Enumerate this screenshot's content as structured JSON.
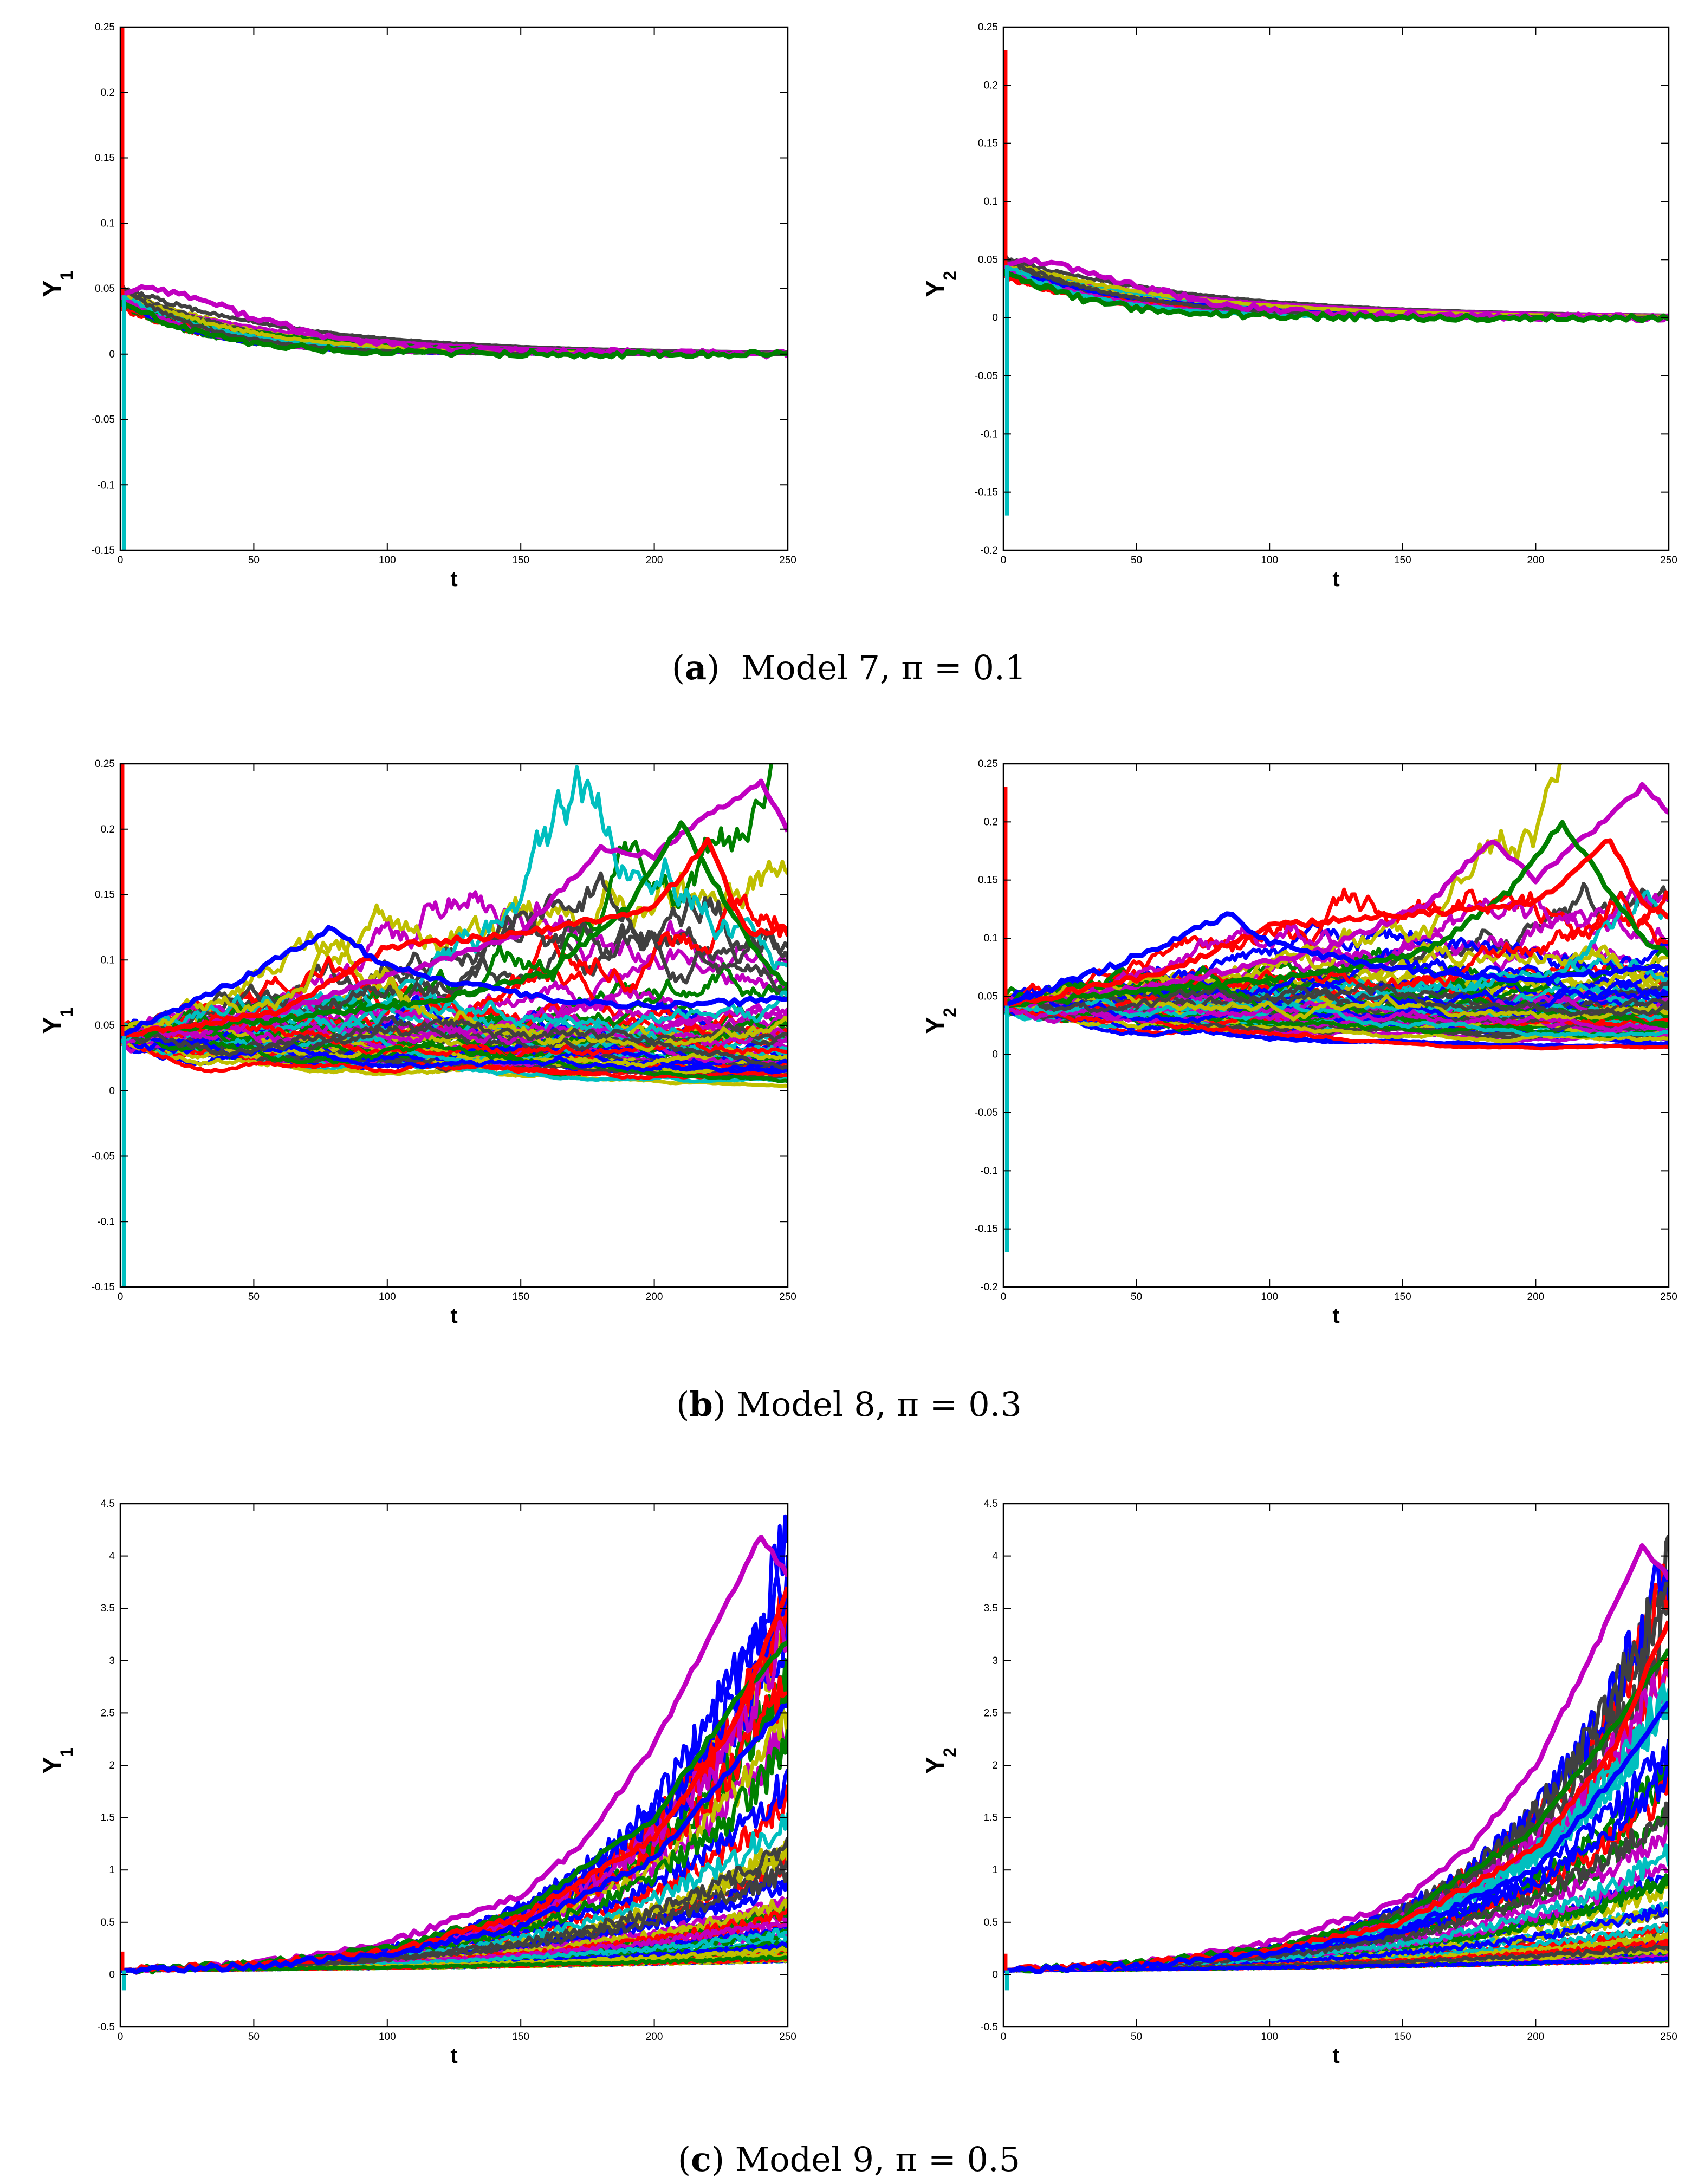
{
  "captions": [
    {
      "tag": "a",
      "text": "Model 7, π = 0.1"
    },
    {
      "tag": "b",
      "text": "Model 8, π = 0.3"
    },
    {
      "tag": "c",
      "text": "Model 9, π = 0.5"
    }
  ],
  "line_colors": [
    "#ff0000",
    "#008000",
    "#0000ff",
    "#c000c0",
    "#00bfbf",
    "#bfbf00",
    "#404040"
  ],
  "chart_data": [
    {
      "id": "a-left",
      "panel": "a",
      "type": "line",
      "title": "",
      "xlabel": "t",
      "ylabel": "Y",
      "ylabel_sub": "1",
      "xlim": [
        0,
        250
      ],
      "ylim": [
        -0.15,
        0.25
      ],
      "xticks": [
        "0",
        "50",
        "100",
        "150",
        "200",
        "250"
      ],
      "yticks": [
        "-0.15",
        "-0.1",
        "-0.05",
        "0",
        "0.05",
        "0.1",
        "0.15",
        "0.2",
        "0.25"
      ],
      "sim": {
        "model": "decay",
        "n_paths": 28,
        "start": 0.045,
        "spread": 0.006,
        "noise": 0.004,
        "rate": 0.045,
        "spike_hi": 0.25,
        "spike_lo": -0.15,
        "seed": 11
      },
      "series": [
        {
          "name": "path-high",
          "x": [
            0,
            10,
            30,
            50,
            80,
            120,
            160,
            200,
            250
          ],
          "y": [
            0.045,
            0.052,
            0.042,
            0.028,
            0.012,
            0.004,
            0.002,
            0.001,
            0.0
          ]
        },
        {
          "name": "path-low",
          "x": [
            0,
            10,
            30,
            50,
            80,
            120,
            160,
            200,
            250
          ],
          "y": [
            0.04,
            0.03,
            0.016,
            0.008,
            0.003,
            0.001,
            0.0,
            0.0,
            0.0
          ]
        }
      ]
    },
    {
      "id": "a-right",
      "panel": "a",
      "type": "line",
      "title": "",
      "xlabel": "t",
      "ylabel": "Y",
      "ylabel_sub": "2",
      "xlim": [
        0,
        250
      ],
      "ylim": [
        -0.2,
        0.25
      ],
      "xticks": [
        "0",
        "50",
        "100",
        "150",
        "200",
        "250"
      ],
      "yticks": [
        "-0.2",
        "-0.15",
        "-0.1",
        "-0.05",
        "0",
        "0.05",
        "0.1",
        "0.15",
        "0.2",
        "0.25"
      ],
      "sim": {
        "model": "decay",
        "n_paths": 28,
        "start": 0.045,
        "spread": 0.006,
        "noise": 0.004,
        "rate": 0.042,
        "spike_hi": 0.23,
        "spike_lo": -0.17,
        "seed": 23
      },
      "series": [
        {
          "name": "path-high",
          "x": [
            0,
            10,
            30,
            50,
            80,
            120,
            160,
            200,
            250
          ],
          "y": [
            0.045,
            0.05,
            0.04,
            0.027,
            0.012,
            0.004,
            0.002,
            0.001,
            0.0
          ]
        },
        {
          "name": "path-low",
          "x": [
            0,
            10,
            30,
            50,
            80,
            120,
            160,
            200,
            250
          ],
          "y": [
            0.04,
            0.03,
            0.016,
            0.008,
            0.003,
            0.001,
            0.0,
            0.0,
            0.0
          ]
        }
      ]
    },
    {
      "id": "b-left",
      "panel": "b",
      "type": "line",
      "title": "",
      "xlabel": "t",
      "ylabel": "Y",
      "ylabel_sub": "1",
      "xlim": [
        0,
        250
      ],
      "ylim": [
        -0.15,
        0.25
      ],
      "xticks": [
        "0",
        "50",
        "100",
        "150",
        "200",
        "250"
      ],
      "yticks": [
        "-0.15",
        "-0.1",
        "-0.05",
        "0",
        "0.05",
        "0.1",
        "0.15",
        "0.2",
        "0.25"
      ],
      "sim": {
        "model": "walk",
        "n_paths": 70,
        "start": 0.042,
        "spread": 0.004,
        "noise": 0.0035,
        "drift": -0.0025,
        "spike_hi": 0.25,
        "spike_lo": -0.15,
        "seed": 37
      },
      "series": [
        {
          "name": "path-peak-magenta",
          "x": [
            0,
            60,
            120,
            150,
            180,
            200,
            220,
            240,
            250
          ],
          "y": [
            0.042,
            0.06,
            0.1,
            0.12,
            0.185,
            0.18,
            0.21,
            0.235,
            0.2
          ]
        },
        {
          "name": "path-peak-green",
          "x": [
            0,
            60,
            120,
            160,
            190,
            210,
            225,
            240,
            250
          ],
          "y": [
            0.042,
            0.055,
            0.07,
            0.09,
            0.14,
            0.205,
            0.15,
            0.1,
            0.08
          ]
        },
        {
          "name": "path-peak-red",
          "x": [
            0,
            60,
            100,
            150,
            200,
            220,
            235,
            250
          ],
          "y": [
            0.042,
            0.06,
            0.11,
            0.12,
            0.14,
            0.19,
            0.12,
            0.125
          ]
        },
        {
          "name": "path-peak-blue",
          "x": [
            0,
            40,
            80,
            95,
            120,
            160,
            200,
            250
          ],
          "y": [
            0.042,
            0.08,
            0.125,
            0.1,
            0.085,
            0.07,
            0.065,
            0.07
          ]
        }
      ]
    },
    {
      "id": "b-right",
      "panel": "b",
      "type": "line",
      "title": "",
      "xlabel": "t",
      "ylabel": "Y",
      "ylabel_sub": "2",
      "xlim": [
        0,
        250
      ],
      "ylim": [
        -0.2,
        0.25
      ],
      "xticks": [
        "0",
        "50",
        "100",
        "150",
        "200",
        "250"
      ],
      "yticks": [
        "-0.2",
        "-0.15",
        "-0.1",
        "-0.05",
        "0",
        "0.05",
        "0.1",
        "0.15",
        "0.2",
        "0.25"
      ],
      "sim": {
        "model": "walk",
        "n_paths": 70,
        "start": 0.042,
        "spread": 0.004,
        "noise": 0.0032,
        "drift": -0.0022,
        "spike_hi": 0.23,
        "spike_lo": -0.17,
        "seed": 53
      },
      "series": [
        {
          "name": "path-peak-magenta",
          "x": [
            0,
            60,
            120,
            160,
            183,
            200,
            220,
            240,
            250
          ],
          "y": [
            0.042,
            0.06,
            0.09,
            0.13,
            0.185,
            0.15,
            0.19,
            0.23,
            0.21
          ]
        },
        {
          "name": "path-peak-green",
          "x": [
            0,
            60,
            120,
            160,
            190,
            210,
            225,
            240,
            250
          ],
          "y": [
            0.042,
            0.055,
            0.07,
            0.09,
            0.14,
            0.2,
            0.15,
            0.1,
            0.085
          ]
        },
        {
          "name": "path-peak-red",
          "x": [
            0,
            60,
            100,
            150,
            200,
            228,
            240,
            250
          ],
          "y": [
            0.042,
            0.07,
            0.11,
            0.12,
            0.13,
            0.185,
            0.13,
            0.12
          ]
        },
        {
          "name": "path-peak-blue",
          "x": [
            0,
            40,
            85,
            95,
            120,
            160,
            200,
            250
          ],
          "y": [
            0.042,
            0.075,
            0.12,
            0.1,
            0.085,
            0.07,
            0.065,
            0.075
          ]
        }
      ]
    },
    {
      "id": "c-left",
      "panel": "c",
      "type": "line",
      "title": "",
      "xlabel": "t",
      "ylabel": "Y",
      "ylabel_sub": "1",
      "xlim": [
        0,
        250
      ],
      "ylim": [
        -0.5,
        4.5
      ],
      "xticks": [
        "0",
        "50",
        "100",
        "150",
        "200",
        "250"
      ],
      "yticks": [
        "-0.5",
        "0",
        "0.5",
        "1",
        "1.5",
        "2",
        "2.5",
        "3",
        "3.5",
        "4",
        "4.5"
      ],
      "sim": {
        "model": "growth",
        "n_paths": 80,
        "start": 0.04,
        "spread": 0.0,
        "noise": 0.05,
        "growth_min": 0.005,
        "growth_max": 0.0186,
        "spike_hi": 0.22,
        "spike_lo": -0.15,
        "seed": 71
      },
      "series": [
        {
          "name": "path-top-magenta",
          "x": [
            0,
            50,
            100,
            150,
            175,
            200,
            220,
            240,
            250
          ],
          "y": [
            0.04,
            0.1,
            0.3,
            0.75,
            1.3,
            2.2,
            3.2,
            4.2,
            3.8
          ]
        },
        {
          "name": "path-green",
          "x": [
            0,
            50,
            100,
            150,
            200,
            230,
            250
          ],
          "y": [
            0.04,
            0.1,
            0.25,
            0.6,
            1.5,
            2.6,
            3.2
          ]
        },
        {
          "name": "path-yellow",
          "x": [
            0,
            50,
            100,
            150,
            200,
            230,
            250
          ],
          "y": [
            0.04,
            0.1,
            0.22,
            0.55,
            1.3,
            2.4,
            3.7
          ]
        },
        {
          "name": "path-cyan",
          "x": [
            0,
            50,
            100,
            150,
            200,
            230,
            250
          ],
          "y": [
            0.04,
            0.08,
            0.2,
            0.45,
            1.1,
            2.0,
            2.6
          ]
        }
      ]
    },
    {
      "id": "c-right",
      "panel": "c",
      "type": "line",
      "title": "",
      "xlabel": "t",
      "ylabel": "Y",
      "ylabel_sub": "2",
      "xlim": [
        0,
        250
      ],
      "ylim": [
        -0.5,
        4.5
      ],
      "xticks": [
        "0",
        "50",
        "100",
        "150",
        "200",
        "250"
      ],
      "yticks": [
        "-0.5",
        "0",
        "0.5",
        "1",
        "1.5",
        "2",
        "2.5",
        "3",
        "3.5",
        "4",
        "4.5"
      ],
      "sim": {
        "model": "growth",
        "n_paths": 80,
        "start": 0.04,
        "spread": 0.0,
        "noise": 0.048,
        "growth_min": 0.005,
        "growth_max": 0.0184,
        "spike_hi": 0.2,
        "spike_lo": -0.15,
        "seed": 89
      },
      "series": [
        {
          "name": "path-top-magenta",
          "x": [
            0,
            50,
            100,
            150,
            175,
            200,
            220,
            240,
            250
          ],
          "y": [
            0.04,
            0.1,
            0.3,
            0.7,
            1.2,
            2.0,
            3.0,
            4.1,
            3.8
          ]
        },
        {
          "name": "path-green",
          "x": [
            0,
            50,
            100,
            150,
            200,
            230,
            250
          ],
          "y": [
            0.04,
            0.1,
            0.25,
            0.55,
            1.4,
            2.4,
            3.1
          ]
        },
        {
          "name": "path-yellow",
          "x": [
            0,
            50,
            100,
            150,
            200,
            230,
            250
          ],
          "y": [
            0.04,
            0.1,
            0.22,
            0.5,
            1.2,
            2.2,
            3.4
          ]
        },
        {
          "name": "path-cyan",
          "x": [
            0,
            50,
            100,
            150,
            200,
            230,
            250
          ],
          "y": [
            0.04,
            0.08,
            0.2,
            0.42,
            1.0,
            1.9,
            2.6
          ]
        }
      ]
    }
  ]
}
